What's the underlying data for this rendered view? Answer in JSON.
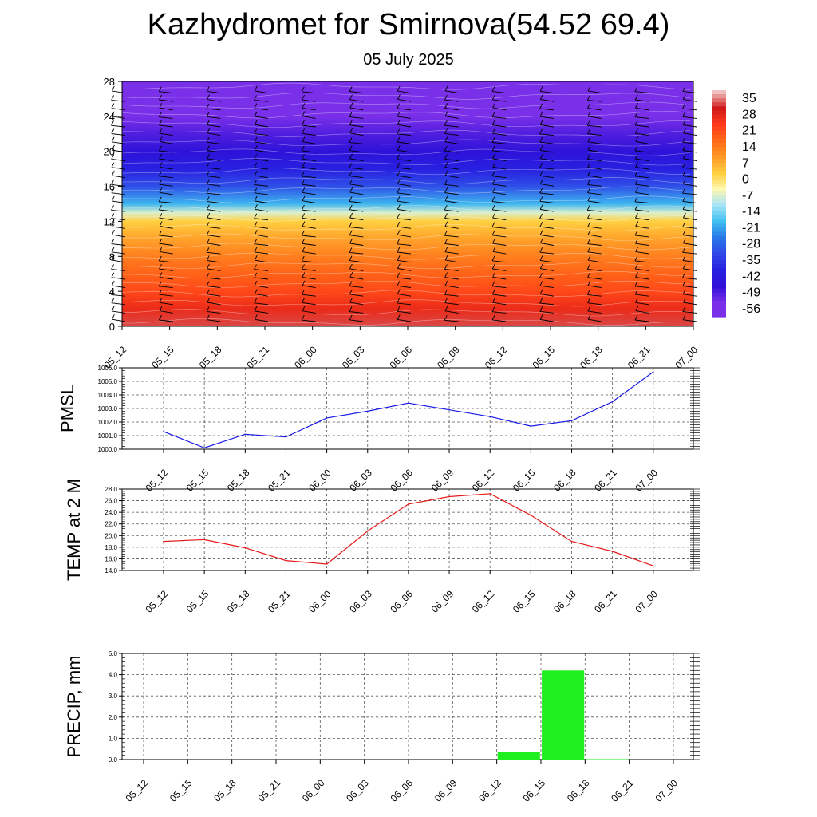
{
  "header": {
    "title": "Kazhydromet for Smirnova(54.52 69.4)",
    "subtitle": "05 July 2025"
  },
  "chart_data": [
    {
      "type": "heatmap",
      "name": "vertical-cross-section",
      "x_ticks": [
        "05_12",
        "05_15",
        "05_18",
        "05_21",
        "06_00",
        "06_03",
        "06_06",
        "06_09",
        "06_12",
        "06_15",
        "06_18",
        "06_21",
        "07_00"
      ],
      "y_ticks": [
        "0",
        "4",
        "8",
        "12",
        "16",
        "20",
        "24",
        "28"
      ],
      "ylim": [
        0,
        28
      ],
      "colorbar": {
        "labels": [
          "35",
          "28",
          "21",
          "14",
          "7",
          "0",
          "-7",
          "-14",
          "-21",
          "-28",
          "-35",
          "-42",
          "-49",
          "-56"
        ],
        "colors": [
          "#f0c0c0",
          "#d01818",
          "#ff3a1a",
          "#ff6a18",
          "#ff9a26",
          "#ffd040",
          "#fff8b0",
          "#a8e4f8",
          "#40bff0",
          "#2878e8",
          "#3048e8",
          "#2820e0",
          "#3010d8",
          "#7a30e8"
        ]
      },
      "temperature_profile": {
        "levels": [
          0,
          2,
          4,
          6,
          8,
          10,
          12,
          13,
          14,
          16,
          18,
          20,
          22,
          24,
          26,
          28
        ],
        "values": [
          30,
          24,
          19,
          15,
          11,
          6,
          0,
          -10,
          -22,
          -34,
          -42,
          -48,
          -52,
          -56,
          -60,
          -60
        ]
      },
      "colors": {
        "contour": "#ffffff",
        "barb": "#000000"
      }
    },
    {
      "type": "line",
      "name": "pmsl",
      "ylabel": "PMSL",
      "categories": [
        "05_12",
        "05_15",
        "05_18",
        "05_21",
        "06_00",
        "06_03",
        "06_06",
        "06_09",
        "06_12",
        "06_15",
        "06_18",
        "06_21",
        "07_00"
      ],
      "values": [
        1001.3,
        1000.1,
        1001.1,
        1000.9,
        1002.3,
        1002.8,
        1003.4,
        1002.9,
        1002.4,
        1001.7,
        1002.1,
        1003.5,
        1005.7
      ],
      "y_ticks": [
        "1000.0",
        "1001.0",
        "1002.0",
        "1003.0",
        "1004.0",
        "1005.0",
        "1006.0"
      ],
      "ylim": [
        1000.0,
        1006.0
      ],
      "color": "#1a1ae6"
    },
    {
      "type": "line",
      "name": "temp-2m",
      "ylabel": "TEMP at 2 M",
      "categories": [
        "05_12",
        "05_15",
        "05_18",
        "05_21",
        "06_00",
        "06_03",
        "06_06",
        "06_09",
        "06_12",
        "06_15",
        "06_18",
        "06_21",
        "07_00"
      ],
      "values": [
        19.0,
        19.3,
        17.9,
        15.7,
        15.1,
        20.8,
        25.4,
        26.7,
        27.2,
        23.5,
        19.0,
        17.3,
        14.8
      ],
      "y_ticks": [
        "14.0",
        "16.0",
        "18.0",
        "20.0",
        "22.0",
        "24.0",
        "26.0",
        "28.0"
      ],
      "ylim": [
        14.0,
        28.0
      ],
      "color": "#e61a1a"
    },
    {
      "type": "bar",
      "name": "precip",
      "ylabel": "PRECIP, mm",
      "categories": [
        "05_12",
        "05_15",
        "05_18",
        "05_21",
        "06_00",
        "06_03",
        "06_06",
        "06_09",
        "06_12",
        "06_15",
        "06_18",
        "06_21",
        "07_00"
      ],
      "values": [
        0,
        0,
        0,
        0,
        0,
        0,
        0,
        0,
        0,
        0.35,
        4.2,
        0.02,
        0
      ],
      "y_ticks": [
        "0.0",
        "1.0",
        "2.0",
        "3.0",
        "4.0",
        "5.0"
      ],
      "ylim": [
        0,
        5.0
      ],
      "color": "#1fef1f"
    }
  ]
}
